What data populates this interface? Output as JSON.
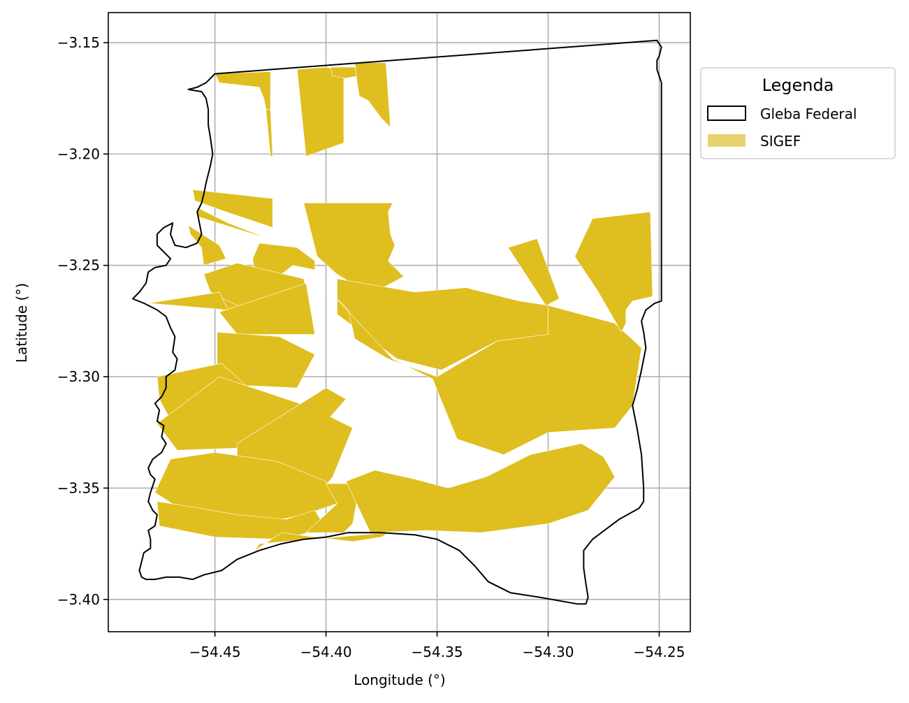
{
  "chart_data": {
    "type": "map",
    "xlabel": "Longitude (°)",
    "ylabel": "Latitude (°)",
    "xlim": [
      -54.498,
      -54.236
    ],
    "ylim": [
      -3.4145,
      -3.1365
    ],
    "xticks": [
      -54.45,
      -54.4,
      -54.35,
      -54.3,
      -54.25
    ],
    "yticks": [
      -3.15,
      -3.2,
      -3.25,
      -3.3,
      -3.35,
      -3.4
    ],
    "xtick_labels": [
      "−54.45",
      "−54.40",
      "−54.35",
      "−54.30",
      "−54.25"
    ],
    "ytick_labels": [
      "−3.15",
      "−3.20",
      "−3.25",
      "−3.30",
      "−3.35",
      "−3.40"
    ],
    "grid": true,
    "legend": {
      "title": "Legenda",
      "placement": "outside-upper-right",
      "entries": [
        {
          "label": "Gleba Federal",
          "style": "outline",
          "color": "#000000"
        },
        {
          "label": "SIGEF",
          "style": "fill",
          "color": "#e8d26e"
        }
      ]
    },
    "colors": {
      "parcel": "#dfbe1f",
      "boundary": "#000000",
      "grid": "#b0b0b0"
    },
    "gleba_boundary": [
      [
        -54.45,
        -3.164
      ],
      [
        -54.251,
        -3.149
      ],
      [
        -54.249,
        -3.152
      ],
      [
        -54.25,
        -3.156
      ],
      [
        -54.251,
        -3.158
      ],
      [
        -54.251,
        -3.162
      ],
      [
        -54.25,
        -3.165
      ],
      [
        -54.249,
        -3.168
      ],
      [
        -54.249,
        -3.266
      ],
      [
        -54.252,
        -3.267
      ],
      [
        -54.256,
        -3.27
      ],
      [
        -54.258,
        -3.275
      ],
      [
        -54.257,
        -3.28
      ],
      [
        -54.256,
        -3.287
      ],
      [
        -54.258,
        -3.297
      ],
      [
        -54.26,
        -3.306
      ],
      [
        -54.262,
        -3.313
      ],
      [
        -54.26,
        -3.323
      ],
      [
        -54.258,
        -3.335
      ],
      [
        -54.257,
        -3.35
      ],
      [
        -54.257,
        -3.356
      ],
      [
        -54.259,
        -3.359
      ],
      [
        -54.268,
        -3.364
      ],
      [
        -54.276,
        -3.37
      ],
      [
        -54.28,
        -3.373
      ],
      [
        -54.284,
        -3.378
      ],
      [
        -54.284,
        -3.386
      ],
      [
        -54.283,
        -3.393
      ],
      [
        -54.282,
        -3.399
      ],
      [
        -54.283,
        -3.402
      ],
      [
        -54.287,
        -3.402
      ],
      [
        -54.304,
        -3.399
      ],
      [
        -54.317,
        -3.397
      ],
      [
        -54.327,
        -3.392
      ],
      [
        -54.333,
        -3.385
      ],
      [
        -54.34,
        -3.378
      ],
      [
        -54.35,
        -3.373
      ],
      [
        -54.36,
        -3.371
      ],
      [
        -54.375,
        -3.37
      ],
      [
        -54.39,
        -3.37
      ],
      [
        -54.4,
        -3.372
      ],
      [
        -54.41,
        -3.373
      ],
      [
        -54.42,
        -3.375
      ],
      [
        -54.43,
        -3.378
      ],
      [
        -54.44,
        -3.382
      ],
      [
        -54.447,
        -3.387
      ],
      [
        -54.455,
        -3.389
      ],
      [
        -54.46,
        -3.391
      ],
      [
        -54.466,
        -3.39
      ],
      [
        -54.472,
        -3.39
      ],
      [
        -54.477,
        -3.391
      ],
      [
        -54.481,
        -3.391
      ],
      [
        -54.483,
        -3.39
      ],
      [
        -54.484,
        -3.387
      ],
      [
        -54.483,
        -3.383
      ],
      [
        -54.482,
        -3.379
      ],
      [
        -54.479,
        -3.377
      ],
      [
        -54.479,
        -3.373
      ],
      [
        -54.48,
        -3.369
      ],
      [
        -54.477,
        -3.367
      ],
      [
        -54.476,
        -3.362
      ],
      [
        -54.478,
        -3.36
      ],
      [
        -54.48,
        -3.356
      ],
      [
        -54.479,
        -3.352
      ],
      [
        -54.477,
        -3.346
      ],
      [
        -54.479,
        -3.344
      ],
      [
        -54.48,
        -3.341
      ],
      [
        -54.478,
        -3.337
      ],
      [
        -54.474,
        -3.334
      ],
      [
        -54.472,
        -3.33
      ],
      [
        -54.474,
        -3.327
      ],
      [
        -54.473,
        -3.322
      ],
      [
        -54.476,
        -3.32
      ],
      [
        -54.475,
        -3.315
      ],
      [
        -54.477,
        -3.312
      ],
      [
        -54.474,
        -3.309
      ],
      [
        -54.472,
        -3.305
      ],
      [
        -54.472,
        -3.3
      ],
      [
        -54.468,
        -3.297
      ],
      [
        -54.467,
        -3.292
      ],
      [
        -54.469,
        -3.289
      ],
      [
        -54.468,
        -3.282
      ],
      [
        -54.47,
        -3.278
      ],
      [
        -54.472,
        -3.273
      ],
      [
        -54.476,
        -3.27
      ],
      [
        -54.482,
        -3.267
      ],
      [
        -54.487,
        -3.265
      ],
      [
        -54.484,
        -3.262
      ],
      [
        -54.481,
        -3.258
      ],
      [
        -54.48,
        -3.253
      ],
      [
        -54.477,
        -3.251
      ],
      [
        -54.472,
        -3.25
      ],
      [
        -54.47,
        -3.247
      ],
      [
        -54.472,
        -3.245
      ],
      [
        -54.476,
        -3.241
      ],
      [
        -54.476,
        -3.236
      ],
      [
        -54.473,
        -3.233
      ],
      [
        -54.469,
        -3.231
      ],
      [
        -54.47,
        -3.236
      ],
      [
        -54.468,
        -3.241
      ],
      [
        -54.463,
        -3.242
      ],
      [
        -54.458,
        -3.24
      ],
      [
        -54.456,
        -3.236
      ],
      [
        -54.457,
        -3.231
      ],
      [
        -54.458,
        -3.226
      ],
      [
        -54.456,
        -3.222
      ],
      [
        -54.455,
        -3.218
      ],
      [
        -54.454,
        -3.213
      ],
      [
        -54.453,
        -3.209
      ],
      [
        -54.452,
        -3.205
      ],
      [
        -54.451,
        -3.2
      ],
      [
        -54.452,
        -3.193
      ],
      [
        -54.453,
        -3.187
      ],
      [
        -54.453,
        -3.18
      ],
      [
        -54.454,
        -3.175
      ],
      [
        -54.456,
        -3.172
      ],
      [
        -54.462,
        -3.171
      ],
      [
        -54.458,
        -3.17
      ],
      [
        -54.454,
        -3.168
      ],
      [
        -54.45,
        -3.164
      ]
    ],
    "sigef_parcels": [
      [
        [
          -54.45,
          -3.164
        ],
        [
          -54.425,
          -3.163
        ],
        [
          -54.425,
          -3.18
        ],
        [
          -54.427,
          -3.18
        ],
        [
          -54.428,
          -3.175
        ],
        [
          -54.43,
          -3.17
        ],
        [
          -54.448,
          -3.168
        ]
      ],
      [
        [
          -54.427,
          -3.18
        ],
        [
          -54.425,
          -3.18
        ],
        [
          -54.424,
          -3.201
        ],
        [
          -54.425,
          -3.201
        ]
      ],
      [
        [
          -54.413,
          -3.162
        ],
        [
          -54.4,
          -3.161
        ],
        [
          -54.392,
          -3.163
        ],
        [
          -54.392,
          -3.195
        ],
        [
          -54.409,
          -3.201
        ]
      ],
      [
        [
          -54.398,
          -3.161
        ],
        [
          -54.387,
          -3.161
        ],
        [
          -54.386,
          -3.165
        ],
        [
          -54.391,
          -3.166
        ],
        [
          -54.397,
          -3.165
        ]
      ],
      [
        [
          -54.387,
          -3.159
        ],
        [
          -54.373,
          -3.159
        ],
        [
          -54.371,
          -3.188
        ],
        [
          -54.375,
          -3.184
        ],
        [
          -54.381,
          -3.176
        ],
        [
          -54.385,
          -3.174
        ],
        [
          -54.386,
          -3.168
        ]
      ],
      [
        [
          -54.424,
          -3.22
        ],
        [
          -54.46,
          -3.216
        ],
        [
          -54.459,
          -3.221
        ],
        [
          -54.445,
          -3.226
        ],
        [
          -54.424,
          -3.233
        ]
      ],
      [
        [
          -54.458,
          -3.224
        ],
        [
          -54.444,
          -3.231
        ],
        [
          -54.426,
          -3.238
        ],
        [
          -54.458,
          -3.228
        ]
      ],
      [
        [
          -54.462,
          -3.232
        ],
        [
          -54.448,
          -3.241
        ],
        [
          -54.445,
          -3.247
        ],
        [
          -54.455,
          -3.25
        ],
        [
          -54.456,
          -3.242
        ],
        [
          -54.461,
          -3.236
        ]
      ],
      [
        [
          -54.43,
          -3.24
        ],
        [
          -54.413,
          -3.242
        ],
        [
          -54.405,
          -3.248
        ],
        [
          -54.405,
          -3.252
        ],
        [
          -54.415,
          -3.25
        ],
        [
          -54.42,
          -3.254
        ],
        [
          -54.432,
          -3.253
        ],
        [
          -54.433,
          -3.247
        ]
      ],
      [
        [
          -54.41,
          -3.222
        ],
        [
          -54.37,
          -3.222
        ],
        [
          -54.372,
          -3.226
        ],
        [
          -54.371,
          -3.236
        ],
        [
          -54.369,
          -3.241
        ],
        [
          -54.372,
          -3.248
        ],
        [
          -54.365,
          -3.255
        ],
        [
          -54.38,
          -3.263
        ],
        [
          -54.395,
          -3.254
        ],
        [
          -54.404,
          -3.246
        ]
      ],
      [
        [
          -54.395,
          -3.256
        ],
        [
          -54.36,
          -3.262
        ],
        [
          -54.337,
          -3.26
        ],
        [
          -54.313,
          -3.266
        ],
        [
          -54.3,
          -3.268
        ],
        [
          -54.3,
          -3.281
        ],
        [
          -54.323,
          -3.284
        ],
        [
          -54.348,
          -3.297
        ],
        [
          -54.368,
          -3.292
        ],
        [
          -54.395,
          -3.272
        ]
      ],
      [
        [
          -54.432,
          -3.257
        ],
        [
          -54.437,
          -3.273
        ],
        [
          -54.447,
          -3.27
        ],
        [
          -54.448,
          -3.258
        ]
      ],
      [
        [
          -54.44,
          -3.249
        ],
        [
          -54.455,
          -3.254
        ],
        [
          -54.452,
          -3.262
        ],
        [
          -54.44,
          -3.268
        ],
        [
          -54.42,
          -3.271
        ],
        [
          -54.408,
          -3.267
        ],
        [
          -54.41,
          -3.256
        ]
      ],
      [
        [
          -54.48,
          -3.267
        ],
        [
          -54.448,
          -3.262
        ],
        [
          -54.444,
          -3.27
        ]
      ],
      [
        [
          -54.409,
          -3.258
        ],
        [
          -54.405,
          -3.281
        ],
        [
          -54.44,
          -3.281
        ],
        [
          -54.448,
          -3.271
        ]
      ],
      [
        [
          -54.4,
          -3.26
        ],
        [
          -54.37,
          -3.292
        ],
        [
          -54.352,
          -3.301
        ],
        [
          -54.341,
          -3.328
        ],
        [
          -54.32,
          -3.335
        ],
        [
          -54.3,
          -3.325
        ],
        [
          -54.27,
          -3.323
        ],
        [
          -54.262,
          -3.313
        ],
        [
          -54.258,
          -3.287
        ],
        [
          -54.27,
          -3.276
        ],
        [
          -54.3,
          -3.268
        ],
        [
          -54.3,
          -3.281
        ],
        [
          -54.323,
          -3.284
        ],
        [
          -54.35,
          -3.3
        ],
        [
          -54.372,
          -3.292
        ],
        [
          -54.387,
          -3.283
        ],
        [
          -54.39,
          -3.27
        ]
      ],
      [
        [
          -54.318,
          -3.242
        ],
        [
          -54.305,
          -3.238
        ],
        [
          -54.295,
          -3.265
        ],
        [
          -54.301,
          -3.268
        ]
      ],
      [
        [
          -54.28,
          -3.229
        ],
        [
          -54.254,
          -3.226
        ],
        [
          -54.253,
          -3.264
        ],
        [
          -54.262,
          -3.266
        ],
        [
          -54.265,
          -3.27
        ],
        [
          -54.265,
          -3.276
        ],
        [
          -54.267,
          -3.28
        ],
        [
          -54.278,
          -3.261
        ],
        [
          -54.288,
          -3.246
        ]
      ],
      [
        [
          -54.449,
          -3.28
        ],
        [
          -54.421,
          -3.282
        ],
        [
          -54.405,
          -3.29
        ],
        [
          -54.413,
          -3.305
        ],
        [
          -54.436,
          -3.304
        ],
        [
          -54.449,
          -3.297
        ]
      ],
      [
        [
          -54.476,
          -3.3
        ],
        [
          -54.447,
          -3.294
        ],
        [
          -54.436,
          -3.304
        ],
        [
          -54.443,
          -3.322
        ],
        [
          -54.466,
          -3.327
        ],
        [
          -54.475,
          -3.31
        ]
      ],
      [
        [
          -54.448,
          -3.3
        ],
        [
          -54.436,
          -3.304
        ],
        [
          -54.412,
          -3.312
        ],
        [
          -54.399,
          -3.325
        ],
        [
          -54.405,
          -3.33
        ],
        [
          -54.438,
          -3.332
        ],
        [
          -54.467,
          -3.333
        ],
        [
          -54.476,
          -3.321
        ]
      ],
      [
        [
          -54.4,
          -3.305
        ],
        [
          -54.391,
          -3.31
        ],
        [
          -54.398,
          -3.318
        ],
        [
          -54.388,
          -3.323
        ],
        [
          -54.397,
          -3.345
        ],
        [
          -54.405,
          -3.355
        ],
        [
          -54.419,
          -3.36
        ],
        [
          -54.433,
          -3.357
        ],
        [
          -54.44,
          -3.35
        ],
        [
          -54.44,
          -3.33
        ]
      ],
      [
        [
          -54.47,
          -3.337
        ],
        [
          -54.45,
          -3.334
        ],
        [
          -54.422,
          -3.338
        ],
        [
          -54.4,
          -3.347
        ],
        [
          -54.395,
          -3.357
        ],
        [
          -54.41,
          -3.362
        ],
        [
          -54.43,
          -3.366
        ],
        [
          -54.46,
          -3.363
        ],
        [
          -54.477,
          -3.352
        ]
      ],
      [
        [
          -54.476,
          -3.356
        ],
        [
          -54.457,
          -3.359
        ],
        [
          -54.44,
          -3.362
        ],
        [
          -54.418,
          -3.364
        ],
        [
          -54.405,
          -3.36
        ],
        [
          -54.402,
          -3.365
        ],
        [
          -54.408,
          -3.37
        ],
        [
          -54.42,
          -3.373
        ],
        [
          -54.45,
          -3.372
        ],
        [
          -54.475,
          -3.367
        ]
      ],
      [
        [
          -54.4,
          -3.348
        ],
        [
          -54.395,
          -3.357
        ],
        [
          -54.409,
          -3.37
        ],
        [
          -54.392,
          -3.37
        ],
        [
          -54.388,
          -3.366
        ],
        [
          -54.386,
          -3.355
        ],
        [
          -54.39,
          -3.348
        ]
      ],
      [
        [
          -54.391,
          -3.347
        ],
        [
          -54.378,
          -3.342
        ],
        [
          -54.36,
          -3.346
        ],
        [
          -54.345,
          -3.35
        ],
        [
          -54.328,
          -3.345
        ],
        [
          -54.318,
          -3.34
        ],
        [
          -54.308,
          -3.335
        ],
        [
          -54.285,
          -3.33
        ],
        [
          -54.275,
          -3.336
        ],
        [
          -54.27,
          -3.345
        ],
        [
          -54.282,
          -3.36
        ],
        [
          -54.3,
          -3.366
        ],
        [
          -54.33,
          -3.37
        ],
        [
          -54.355,
          -3.369
        ],
        [
          -54.38,
          -3.37
        ]
      ],
      [
        [
          -54.42,
          -3.37
        ],
        [
          -54.405,
          -3.372
        ],
        [
          -54.388,
          -3.374
        ],
        [
          -54.375,
          -3.372
        ],
        [
          -54.372,
          -3.37
        ],
        [
          -54.43,
          -3.375
        ],
        [
          -54.432,
          -3.378
        ]
      ]
    ]
  }
}
